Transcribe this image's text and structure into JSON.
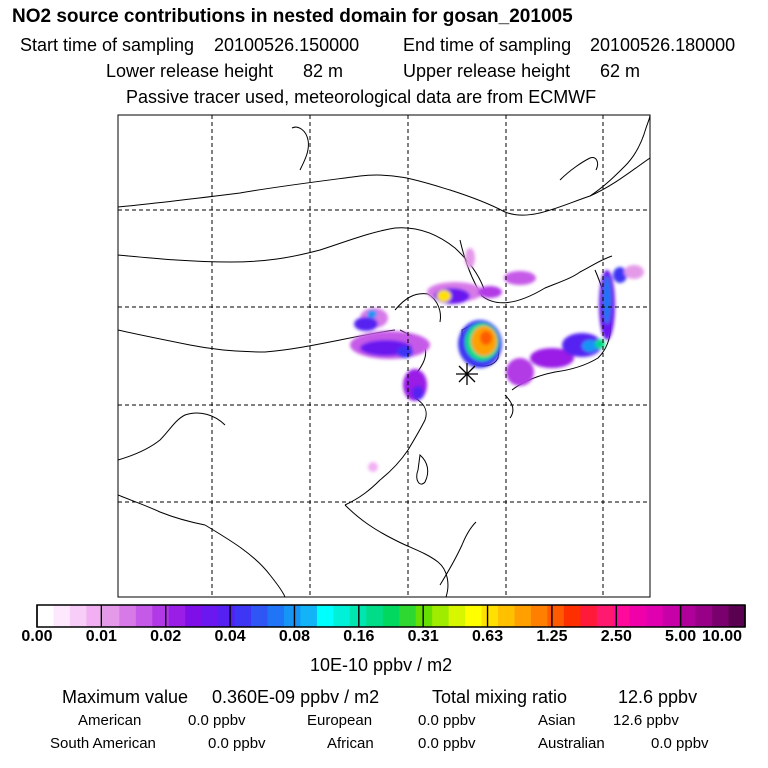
{
  "title": "NO2 source contributions in nested domain for gosan_201005",
  "sampling": {
    "start_label": "Start time of sampling",
    "start_value": "20100526.150000",
    "end_label": "End time of sampling",
    "end_value": "20100526.180000"
  },
  "release": {
    "lower_label": "Lower release height",
    "lower_value": "82 m",
    "upper_label": "Upper release height",
    "upper_value": "62 m"
  },
  "note": "Passive tracer used, meteorological data are from ECMWF",
  "colorbar": {
    "ticks": [
      "0.00",
      "0.01",
      "0.02",
      "0.04",
      "0.08",
      "0.16",
      "0.31",
      "0.63",
      "1.25",
      "2.50",
      "5.00",
      "10.00"
    ],
    "unit": "10E-10 ppbv / m2",
    "colors": [
      "#ffffff",
      "#fde8fd",
      "#f8cdf8",
      "#f2b0f2",
      "#e49ae8",
      "#d77ae8",
      "#c65ae8",
      "#b23ae6",
      "#9a1ee6",
      "#7f0fe8",
      "#6a18ef",
      "#5520f2",
      "#3d36f4",
      "#2f55f4",
      "#1f75f5",
      "#1795f6",
      "#12b4f7",
      "#00ffff",
      "#00f0d8",
      "#00e6b0",
      "#00dc88",
      "#00d860",
      "#2ed830",
      "#66e000",
      "#a0ec00",
      "#d8f600",
      "#ffff00",
      "#ffe000",
      "#ffc000",
      "#ffa000",
      "#ff7f00",
      "#ff5a00",
      "#ff3000",
      "#ff1a3a",
      "#ff1a70",
      "#ff0a9a",
      "#f000a8",
      "#e000b0",
      "#c800a8",
      "#b0009a",
      "#980088",
      "#7a006e",
      "#5a0050"
    ]
  },
  "summary": {
    "max_label": "Maximum value",
    "max_value": "0.360E-09 ppbv / m2",
    "total_label": "Total mixing ratio",
    "total_value": "12.6 ppbv"
  },
  "regions": [
    {
      "name": "American",
      "value": "0.0 ppbv"
    },
    {
      "name": "European",
      "value": "0.0 ppbv"
    },
    {
      "name": "Asian",
      "value": "12.6 ppbv"
    },
    {
      "name": "South American",
      "value": "0.0 ppbv"
    },
    {
      "name": "African",
      "value": "0.0 ppbv"
    },
    {
      "name": "Australian",
      "value": "0.0 ppbv"
    }
  ]
}
